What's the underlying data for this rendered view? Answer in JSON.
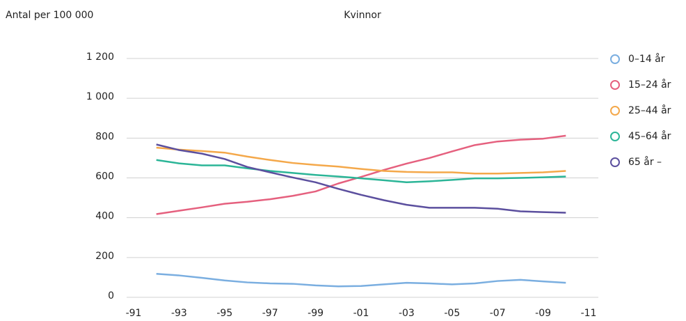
{
  "chart_data": {
    "type": "line",
    "title": "Kvinnor",
    "y_label": "Antal per 100 000",
    "x": [
      1992,
      1993,
      1994,
      1995,
      1996,
      1997,
      1998,
      1999,
      2000,
      2001,
      2002,
      2003,
      2004,
      2005,
      2006,
      2007,
      2008,
      2009,
      2010
    ],
    "series": [
      {
        "name": "0–14 år",
        "color": "#7aaee0",
        "values": [
          118,
          110,
          98,
          85,
          75,
          70,
          68,
          60,
          55,
          57,
          65,
          73,
          70,
          65,
          70,
          82,
          88,
          80,
          73
        ]
      },
      {
        "name": "15–24 år",
        "color": "#e5607e",
        "values": [
          418,
          435,
          452,
          470,
          480,
          493,
          510,
          532,
          572,
          605,
          640,
          672,
          700,
          733,
          765,
          783,
          792,
          797,
          812
        ]
      },
      {
        "name": "25–44 år",
        "color": "#f4a84a",
        "values": [
          752,
          742,
          735,
          727,
          707,
          690,
          675,
          665,
          657,
          645,
          635,
          630,
          628,
          628,
          622,
          622,
          625,
          628,
          635
        ]
      },
      {
        "name": "45–64 år",
        "color": "#2bb597",
        "values": [
          690,
          673,
          663,
          663,
          648,
          635,
          625,
          615,
          607,
          598,
          588,
          578,
          583,
          590,
          598,
          598,
          600,
          603,
          607
        ]
      },
      {
        "name": "65 år –",
        "color": "#5b4f9e",
        "values": [
          768,
          740,
          722,
          695,
          655,
          628,
          602,
          578,
          545,
          515,
          488,
          465,
          450,
          450,
          450,
          445,
          432,
          428,
          425
        ]
      }
    ],
    "xlim": [
      1991,
      2011
    ],
    "xticks": [
      {
        "value": 1991,
        "label": "-91"
      },
      {
        "value": 1993,
        "label": "-93"
      },
      {
        "value": 1995,
        "label": "-95"
      },
      {
        "value": 1997,
        "label": "-97"
      },
      {
        "value": 1999,
        "label": "-99"
      },
      {
        "value": 2001,
        "label": "-01"
      },
      {
        "value": 2003,
        "label": "-03"
      },
      {
        "value": 2005,
        "label": "-05"
      },
      {
        "value": 2007,
        "label": "-07"
      },
      {
        "value": 2009,
        "label": "-09"
      },
      {
        "value": 2011,
        "label": "-11"
      }
    ],
    "ylim": [
      0,
      1200
    ],
    "yticks": [
      0,
      200,
      400,
      600,
      800,
      {
        "value": 1000,
        "label": "1 000"
      },
      {
        "value": 1200,
        "label": "1 200"
      }
    ],
    "grid": true,
    "legend": "right"
  }
}
